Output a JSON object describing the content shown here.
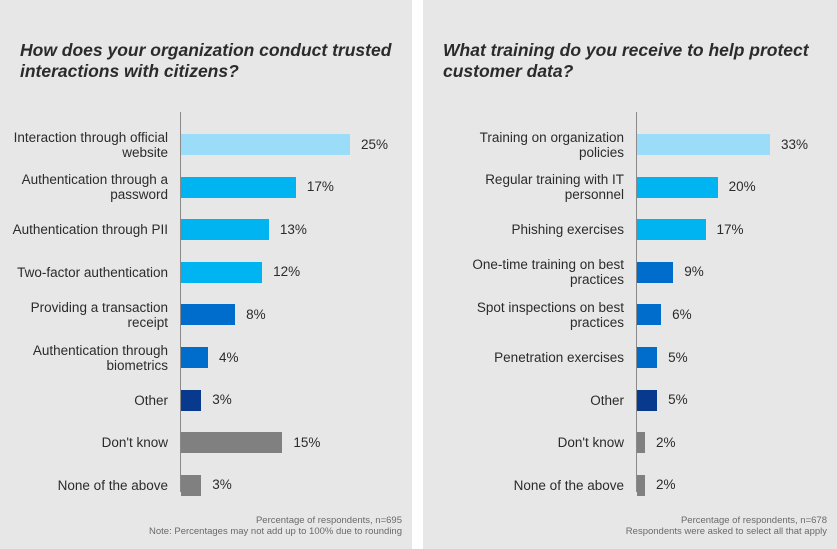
{
  "chart_data": [
    {
      "type": "bar",
      "orientation": "horizontal",
      "title": "How does your organization conduct trusted interactions with citizens?",
      "categories": [
        "Interaction through official website",
        "Authentication through a password",
        "Authentication through PII",
        "Two-factor authentication",
        "Providing a transaction receipt",
        "Authentication through biometrics",
        "Other",
        "Don't know",
        "None of the above"
      ],
      "values": [
        25,
        17,
        13,
        12,
        8,
        4,
        3,
        15,
        3
      ],
      "value_labels": [
        "25%",
        "17%",
        "13%",
        "12%",
        "8%",
        "4%",
        "3%",
        "15%",
        "3%"
      ],
      "colors": [
        "#9bdcf8",
        "#00b4f1",
        "#00b4f1",
        "#00b4f1",
        "#006ccb",
        "#006ccb",
        "#073a8c",
        "#808080",
        "#808080"
      ],
      "xlabel": "",
      "ylabel": "",
      "xlim": [
        0,
        25
      ],
      "grid": false,
      "notes": [
        "Percentage of respondents, n=695",
        "Note: Percentages may not add up to 100% due to rounding"
      ]
    },
    {
      "type": "bar",
      "orientation": "horizontal",
      "title": "What training do you receive to help protect customer data?",
      "categories": [
        "Training on organization policies",
        "Regular training with IT personnel",
        "Phishing exercises",
        "One-time training on best practices",
        "Spot inspections on best practices",
        "Penetration exercises",
        "Other",
        "Don't know",
        "None of the above"
      ],
      "values": [
        33,
        20,
        17,
        9,
        6,
        5,
        5,
        2,
        2
      ],
      "value_labels": [
        "33%",
        "20%",
        "17%",
        "9%",
        "6%",
        "5%",
        "5%",
        "2%",
        "2%"
      ],
      "colors": [
        "#9bdcf8",
        "#00b4f1",
        "#00b4f1",
        "#006ccb",
        "#006ccb",
        "#006ccb",
        "#073a8c",
        "#808080",
        "#808080"
      ],
      "xlabel": "",
      "ylabel": "",
      "xlim": [
        0,
        33
      ],
      "grid": false,
      "notes": [
        "Percentage of respondents, n=678",
        "Respondents were asked to select all that apply"
      ]
    }
  ]
}
